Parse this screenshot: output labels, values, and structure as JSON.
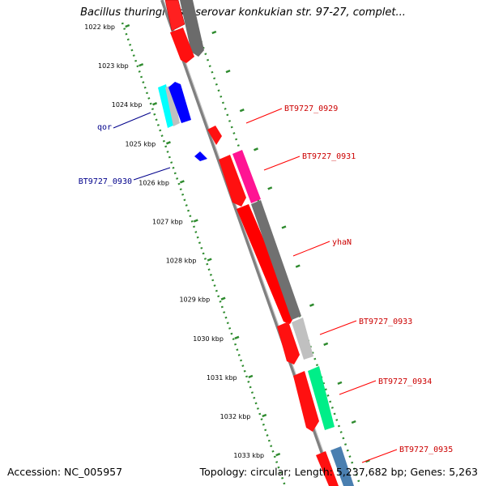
{
  "title": "Bacillus thuringiensis serovar konkukian str. 97-27, complet...",
  "footer": {
    "accession": "Accession: NC_005957",
    "topology": "Topology: circular; Length: 5,237,682 bp; Genes: 5,263"
  },
  "scale_ticks": [
    "1022 kbp",
    "1023 kbp",
    "1024 kbp",
    "1025 kbp",
    "1026 kbp",
    "1027 kbp",
    "1028 kbp",
    "1029 kbp",
    "1030 kbp",
    "1031 kbp",
    "1032 kbp",
    "1033 kbp"
  ],
  "gene_labels": [
    {
      "id": "qor",
      "text": "qor",
      "strand": "reverse",
      "color": "#00008b"
    },
    {
      "id": "BT9727_0930",
      "text": "BT9727_0930",
      "strand": "reverse",
      "color": "#00008b"
    },
    {
      "id": "BT9727_0929",
      "text": "BT9727_0929",
      "strand": "forward",
      "color": "#cc0000"
    },
    {
      "id": "BT9727_0931",
      "text": "BT9727_0931",
      "strand": "forward",
      "color": "#cc0000"
    },
    {
      "id": "yhaN",
      "text": "yhaN",
      "strand": "forward",
      "color": "#cc0000"
    },
    {
      "id": "BT9727_0933",
      "text": "BT9727_0933",
      "strand": "forward",
      "color": "#cc0000"
    },
    {
      "id": "BT9727_0934",
      "text": "BT9727_0934",
      "strand": "forward",
      "color": "#cc0000"
    },
    {
      "id": "BT9727_0935",
      "text": "BT9727_0935",
      "strand": "forward",
      "color": "#cc0000"
    }
  ],
  "colors": {
    "forward_gene": "#ff0000",
    "reverse_gene": "#0000ff",
    "backbone": "#808080",
    "tick_green": "#2e8b2e"
  }
}
